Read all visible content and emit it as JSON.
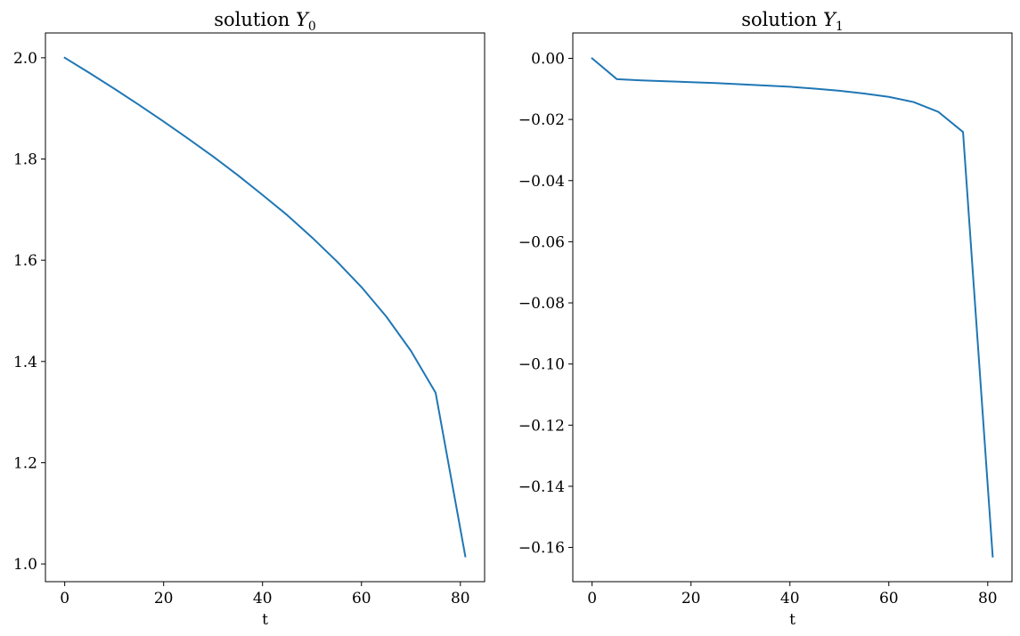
{
  "chart_data": [
    {
      "type": "line",
      "title": "solution",
      "title_symbol": "Y",
      "title_subscript": "0",
      "xlabel": "t",
      "ylabel": "",
      "xlim": [
        -3.9,
        84.9
      ],
      "ylim": [
        0.965,
        2.049
      ],
      "xticks": [
        0,
        20,
        40,
        60,
        80
      ],
      "xtick_labels": [
        "0",
        "20",
        "40",
        "60",
        "80"
      ],
      "yticks": [
        1.0,
        1.2,
        1.4,
        1.6,
        1.8,
        2.0
      ],
      "ytick_labels": [
        "1.0",
        "1.2",
        "1.4",
        "1.6",
        "1.8",
        "2.0"
      ],
      "grid": false,
      "line_color": "#1f77b4",
      "series": [
        {
          "x": [
            0,
            5,
            10,
            15,
            20,
            25,
            30,
            35,
            40,
            45,
            50,
            55,
            60,
            65,
            70,
            75,
            81
          ],
          "y": [
            2.0,
            1.97,
            1.939,
            1.907,
            1.874,
            1.84,
            1.805,
            1.768,
            1.729,
            1.689,
            1.645,
            1.598,
            1.547,
            1.489,
            1.421,
            1.338,
            1.015
          ]
        }
      ]
    },
    {
      "type": "line",
      "title": "solution",
      "title_symbol": "Y",
      "title_subscript": "1",
      "xlabel": "t",
      "ylabel": "",
      "xlim": [
        -3.9,
        84.9
      ],
      "ylim": [
        -0.1712,
        0.0083
      ],
      "xticks": [
        0,
        20,
        40,
        60,
        80
      ],
      "xtick_labels": [
        "0",
        "20",
        "40",
        "60",
        "80"
      ],
      "yticks": [
        0.0,
        -0.02,
        -0.04,
        -0.06,
        -0.08,
        -0.1,
        -0.12,
        -0.14,
        -0.16
      ],
      "ytick_labels": [
        "0.00",
        "−0.02",
        "−0.04",
        "−0.06",
        "−0.08",
        "−0.10",
        "−0.12",
        "−0.14",
        "−0.16"
      ],
      "grid": false,
      "line_color": "#1f77b4",
      "series": [
        {
          "x": [
            0,
            5,
            10,
            15,
            20,
            25,
            30,
            35,
            40,
            45,
            50,
            55,
            60,
            65,
            70,
            75,
            81
          ],
          "y": [
            0.0,
            -0.0068,
            -0.0072,
            -0.0075,
            -0.0078,
            -0.0081,
            -0.0085,
            -0.0089,
            -0.0093,
            -0.0099,
            -0.0106,
            -0.0115,
            -0.0126,
            -0.0143,
            -0.0175,
            -0.0241,
            -0.163
          ]
        }
      ]
    }
  ]
}
